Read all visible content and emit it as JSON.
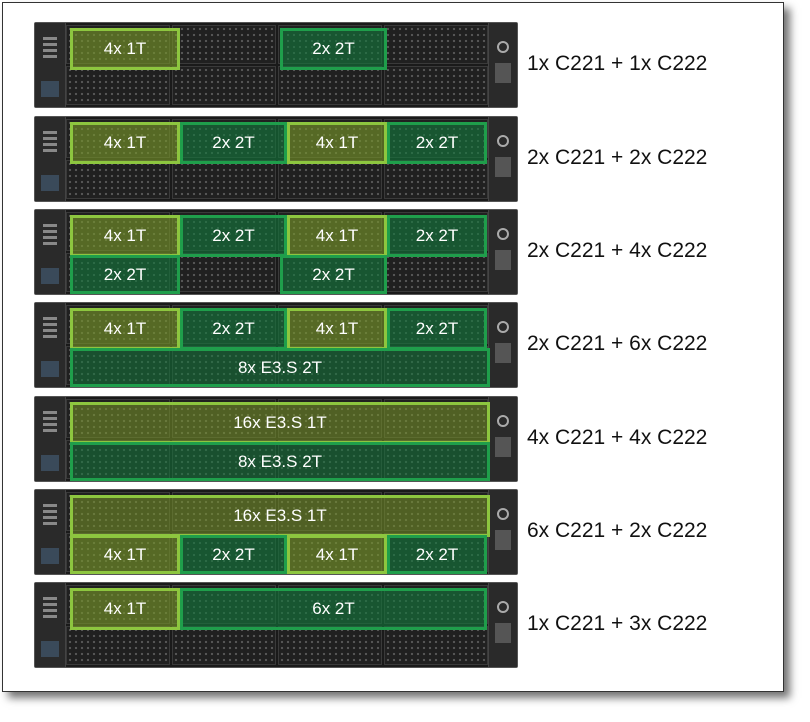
{
  "rows": [
    {
      "config": "1x C221 + 1x C222",
      "zones": [
        {
          "label": "4x 1T",
          "type": "1t"
        },
        {
          "label": "2x 2T",
          "type": "2t"
        }
      ]
    },
    {
      "config": "2x C221 + 2x C222",
      "zones": [
        {
          "label": "4x 1T",
          "type": "1t"
        },
        {
          "label": "2x 2T",
          "type": "2t"
        },
        {
          "label": "4x 1T",
          "type": "1t"
        },
        {
          "label": "2x 2T",
          "type": "2t"
        }
      ]
    },
    {
      "config": "2x C221 + 4x C222",
      "zones": [
        {
          "label": "4x 1T",
          "type": "1t"
        },
        {
          "label": "2x 2T",
          "type": "2t"
        },
        {
          "label": "4x 1T",
          "type": "1t"
        },
        {
          "label": "2x 2T",
          "type": "2t"
        },
        {
          "label": "2x 2T",
          "type": "2t"
        },
        {
          "label": "2x 2T",
          "type": "2t"
        }
      ]
    },
    {
      "config": "2x C221 + 6x C222",
      "zones": [
        {
          "label": "4x 1T",
          "type": "1t"
        },
        {
          "label": "2x 2T",
          "type": "2t"
        },
        {
          "label": "4x 1T",
          "type": "1t"
        },
        {
          "label": "2x 2T",
          "type": "2t"
        },
        {
          "label": "8x E3.S 2T",
          "type": "e2"
        }
      ]
    },
    {
      "config": "4x C221 + 4x C222",
      "zones": [
        {
          "label": "16x E3.S 1T",
          "type": "e1"
        },
        {
          "label": "8x E3.S 2T",
          "type": "e2"
        }
      ]
    },
    {
      "config": "6x C221 + 2x C222",
      "zones": [
        {
          "label": "16x E3.S 1T",
          "type": "e1"
        },
        {
          "label": "4x 1T",
          "type": "1t"
        },
        {
          "label": "2x 2T",
          "type": "2t"
        },
        {
          "label": "4x 1T",
          "type": "1t"
        },
        {
          "label": "2x 2T",
          "type": "2t"
        }
      ]
    },
    {
      "config": "1x C221 + 3x C222",
      "zones": [
        {
          "label": "4x 1T",
          "type": "1t"
        },
        {
          "label": "6x 2T",
          "type": "2t"
        }
      ]
    }
  ],
  "colors": {
    "c1t_border": "#8dc63f",
    "c2t_border": "#1f9e4b",
    "text": "#111111"
  }
}
